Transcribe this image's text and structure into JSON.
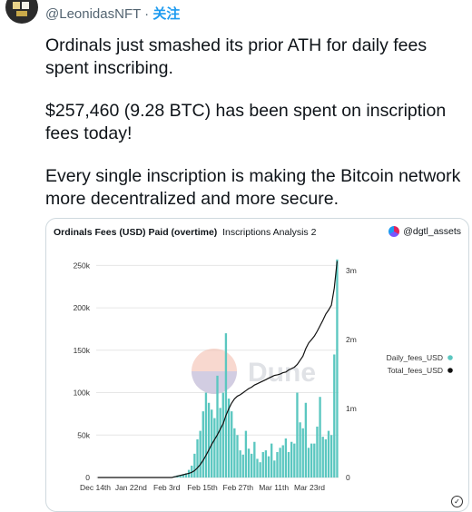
{
  "tweet": {
    "handle": "@LeonidasNFT",
    "separator": " · ",
    "follow_label": "关注",
    "paragraphs": [
      "Ordinals just smashed its prior ATH for daily fees spent inscribing.",
      "$257,460 (9.28 BTC) has been spent on inscription fees today!",
      "Every single inscription is making the Bitcoin network more decentralized and more secure."
    ]
  },
  "card": {
    "title_bold": "Ordinals Fees (USD) Paid (overtime)",
    "subtitle": "Inscriptions Analysis 2",
    "author": "@dgtl_assets",
    "watermark": "Dune"
  },
  "colors": {
    "bar": "#5bc7c0",
    "line": "#111111",
    "grid": "#e6e6e6"
  },
  "chart_data": {
    "type": "bar",
    "xlabels": [
      "Dec 14th",
      "Jan 22nd",
      "Feb 3rd",
      "Feb 15th",
      "Feb 27th",
      "Mar 11th",
      "Mar 23rd"
    ],
    "ylim": [
      0,
      260000
    ],
    "yticks": [
      "0",
      "50k",
      "100k",
      "150k",
      "200k",
      "250k"
    ],
    "ytick_values": [
      0,
      50000,
      100000,
      150000,
      200000,
      250000
    ],
    "y2lim": [
      0,
      3200000
    ],
    "y2ticks": [
      "0",
      "1m",
      "2m",
      "3m"
    ],
    "y2tick_values": [
      0,
      1000000,
      2000000,
      3000000
    ],
    "legend": [
      {
        "name": "Daily_fees_USD",
        "color": "#5bc7c0"
      },
      {
        "name": "Total_fees_USD",
        "color": "#111111"
      }
    ],
    "legend_position": "right",
    "daily_fees_usd": [
      0,
      0,
      0,
      0,
      0,
      0,
      0,
      0,
      0,
      0,
      0,
      0,
      0,
      0,
      0,
      0,
      0,
      0,
      0,
      0,
      0,
      0,
      0,
      0,
      0,
      0,
      0,
      1500,
      2500,
      3000,
      4000,
      5000,
      9000,
      14000,
      28000,
      45000,
      55000,
      78000,
      100000,
      88000,
      80000,
      70000,
      120000,
      82000,
      100000,
      170000,
      93000,
      78000,
      58000,
      50000,
      32000,
      27000,
      55000,
      34000,
      28000,
      42000,
      22000,
      18000,
      30000,
      32000,
      25000,
      40000,
      20000,
      30000,
      35000,
      38000,
      46000,
      30000,
      42000,
      40000,
      100000,
      65000,
      58000,
      88000,
      35000,
      40000,
      40000,
      60000,
      95000,
      48000,
      45000,
      55000,
      50000,
      145000,
      257000
    ],
    "total_fees_usd": [
      0,
      0,
      0,
      0,
      0,
      0,
      0,
      0,
      0,
      0,
      0,
      0,
      0,
      0,
      0,
      0,
      0,
      0,
      0,
      0,
      0,
      0,
      0,
      0,
      0,
      0,
      0,
      10000,
      20000,
      30000,
      40000,
      50000,
      60000,
      75000,
      100000,
      140000,
      190000,
      250000,
      320000,
      400000,
      480000,
      550000,
      620000,
      700000,
      780000,
      900000,
      1000000,
      1080000,
      1140000,
      1180000,
      1200000,
      1230000,
      1260000,
      1290000,
      1310000,
      1340000,
      1360000,
      1380000,
      1400000,
      1420000,
      1440000,
      1460000,
      1480000,
      1490000,
      1500000,
      1520000,
      1530000,
      1560000,
      1580000,
      1600000,
      1640000,
      1700000,
      1760000,
      1870000,
      1950000,
      2000000,
      2050000,
      2120000,
      2200000,
      2280000,
      2370000,
      2430000,
      2500000,
      2750000,
      3140000
    ]
  }
}
